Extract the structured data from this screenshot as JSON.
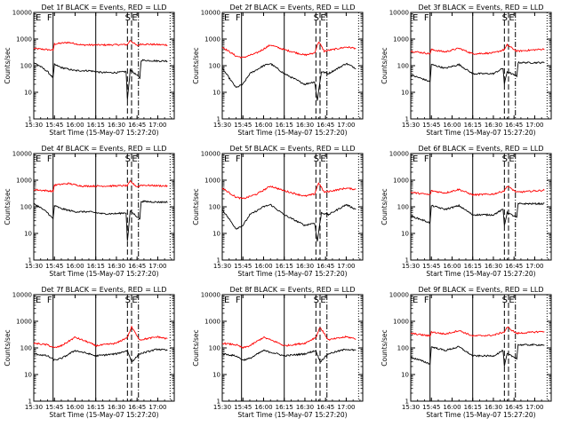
{
  "figure": {
    "layout": {
      "rows": 3,
      "cols": 3
    },
    "colors": {
      "events": "#000000",
      "lld": "#ff0000",
      "axes": "#000000",
      "background": "#ffffff"
    }
  },
  "chart_data": [
    {
      "title": "Det 1f BLACK = Events, RED = LLD",
      "shape": 0
    },
    {
      "title": "Det 2f BLACK = Events, RED = LLD",
      "shape": 1
    },
    {
      "title": "Det 3f BLACK = Events, RED = LLD",
      "shape": 2
    },
    {
      "title": "Det 4f BLACK = Events, RED = LLD",
      "shape": 0
    },
    {
      "title": "Det 5f BLACK = Events, RED = LLD",
      "shape": 1
    },
    {
      "title": "Det 6f BLACK = Events, RED = LLD",
      "shape": 2
    },
    {
      "title": "Det 7f BLACK = Events, RED = LLD",
      "shape": 3
    },
    {
      "title": "Det 8f BLACK = Events, RED = LLD",
      "shape": 3
    },
    {
      "title": "Det 9f BLACK = Events, RED = LLD",
      "shape": 2
    }
  ],
  "common": {
    "type": "line",
    "yscale": "log",
    "ylim": [
      1,
      10000
    ],
    "xlim": [
      "15:30",
      "17:12"
    ],
    "ylabel": "Counts/sec",
    "xlabel": "Start Time (15-May-07 15:27:20)",
    "xticks": [
      "15:30",
      "15:45",
      "16:00",
      "16:15",
      "16:30",
      "16:45",
      "17:00"
    ],
    "yticks": [
      "1",
      "10",
      "100",
      "1000",
      "10000"
    ],
    "grid": false,
    "markers": [
      {
        "time": "15:44",
        "label": "F",
        "style": "solid"
      },
      {
        "time": "16:15",
        "label": "",
        "style": "solid"
      },
      {
        "time": "16:38",
        "label": "",
        "style": "dashed"
      },
      {
        "time": "16:41",
        "label": "S",
        "style": "dashed"
      },
      {
        "time": "16:46",
        "label": "E",
        "style": "dash-dot"
      },
      {
        "time": "17:09",
        "label": "",
        "style": "dotted"
      }
    ],
    "profiles": [
      {
        "events": {
          "time": [
            "15:30",
            "15:34",
            "15:40",
            "15:44",
            "15:45",
            "15:50",
            "16:00",
            "16:10",
            "16:20",
            "16:30",
            "16:37",
            "16:38",
            "16:40",
            "16:47",
            "16:48",
            "17:00",
            "17:07"
          ],
          "counts": [
            130,
            100,
            60,
            35,
            110,
            85,
            65,
            65,
            55,
            55,
            60,
            5,
            70,
            35,
            160,
            150,
            150
          ]
        },
        "lld": {
          "time": [
            "15:30",
            "15:40",
            "15:44",
            "15:45",
            "15:55",
            "16:05",
            "16:20",
            "16:38",
            "16:40",
            "16:45",
            "16:48",
            "17:07"
          ],
          "counts": [
            440,
            400,
            380,
            650,
            750,
            600,
            600,
            620,
            900,
            560,
            650,
            600
          ]
        }
      },
      {
        "events": {
          "time": [
            "15:30",
            "15:40",
            "15:45",
            "15:50",
            "16:00",
            "16:05",
            "16:15",
            "16:30",
            "16:37",
            "16:39",
            "16:42",
            "16:47",
            "17:00",
            "17:07"
          ],
          "counts": [
            80,
            15,
            20,
            50,
            100,
            120,
            50,
            20,
            25,
            5,
            60,
            50,
            120,
            80
          ]
        },
        "lld": {
          "time": [
            "15:30",
            "15:40",
            "15:45",
            "15:55",
            "16:05",
            "16:15",
            "16:30",
            "16:37",
            "16:40",
            "16:44",
            "17:00",
            "17:07"
          ],
          "counts": [
            500,
            230,
            200,
            300,
            600,
            400,
            250,
            300,
            800,
            350,
            500,
            450
          ]
        }
      },
      {
        "events": {
          "time": [
            "15:30",
            "15:40",
            "15:44",
            "15:45",
            "15:55",
            "16:05",
            "16:15",
            "16:30",
            "16:37",
            "16:38",
            "16:40",
            "16:47",
            "16:48",
            "17:07"
          ],
          "counts": [
            45,
            30,
            25,
            110,
            80,
            110,
            50,
            50,
            80,
            20,
            60,
            40,
            130,
            130
          ]
        },
        "lld": {
          "time": [
            "15:30",
            "15:40",
            "15:44",
            "15:45",
            "15:55",
            "16:05",
            "16:15",
            "16:30",
            "16:38",
            "16:40",
            "16:47",
            "17:07"
          ],
          "counts": [
            350,
            300,
            280,
            400,
            330,
            450,
            280,
            300,
            400,
            600,
            350,
            420
          ]
        }
      },
      {
        "events": {
          "time": [
            "15:30",
            "15:40",
            "15:45",
            "15:50",
            "16:00",
            "16:10",
            "16:15",
            "16:30",
            "16:38",
            "16:41",
            "16:47",
            "17:00",
            "17:07"
          ],
          "counts": [
            60,
            50,
            35,
            40,
            80,
            60,
            50,
            60,
            80,
            30,
            60,
            90,
            80
          ]
        },
        "lld": {
          "time": [
            "15:30",
            "15:40",
            "15:45",
            "15:50",
            "16:00",
            "16:10",
            "16:15",
            "16:30",
            "16:38",
            "16:41",
            "16:47",
            "17:00",
            "17:07"
          ],
          "counts": [
            150,
            130,
            100,
            120,
            250,
            160,
            120,
            150,
            250,
            600,
            200,
            260,
            220
          ]
        }
      }
    ]
  }
}
